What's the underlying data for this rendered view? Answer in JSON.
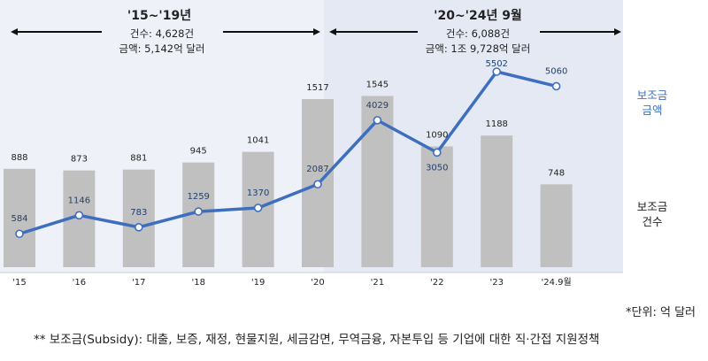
{
  "chart_data": {
    "type": "bar+line",
    "categories": [
      "'15",
      "'16",
      "'17",
      "'18",
      "'19",
      "'20",
      "'21",
      "'22",
      "'23",
      "'24.9월"
    ],
    "series": [
      {
        "name": "보조금 건수",
        "type": "bar",
        "values": [
          888,
          873,
          881,
          945,
          1041,
          1517,
          1545,
          1090,
          1188,
          748
        ],
        "color": "#c0c0c0"
      },
      {
        "name": "보조금 금액",
        "type": "line",
        "values": [
          584,
          1146,
          783,
          1259,
          1370,
          2087,
          4029,
          3050,
          5502,
          5060
        ],
        "color": "#3e6fbf"
      }
    ],
    "legend": {
      "amount": [
        "보조금",
        "금액"
      ],
      "count": [
        "보조금",
        "건수"
      ]
    },
    "periods": [
      {
        "title": "'15~'19년",
        "lines": [
          "건수: 4,628건",
          "금액: 5,142억 달러"
        ],
        "background": "#eef1f8"
      },
      {
        "title": "'20~'24년 9월",
        "lines": [
          "건수: 6,088건",
          "금액: 1조 9,728억 달러"
        ],
        "background": "#e4e9f4"
      }
    ]
  },
  "notes": {
    "unit": "*단위: 억 달러",
    "definition": "** 보조금(Subsidy): 대출, 보증, 재정, 현물지원, 세금감면, 무역금융, 자본투입 등 기업에 대한 직·간접 지원정책"
  },
  "colors": {
    "bar": "#c0c0c0",
    "line": "#3e6fbf",
    "text": "#222222"
  }
}
